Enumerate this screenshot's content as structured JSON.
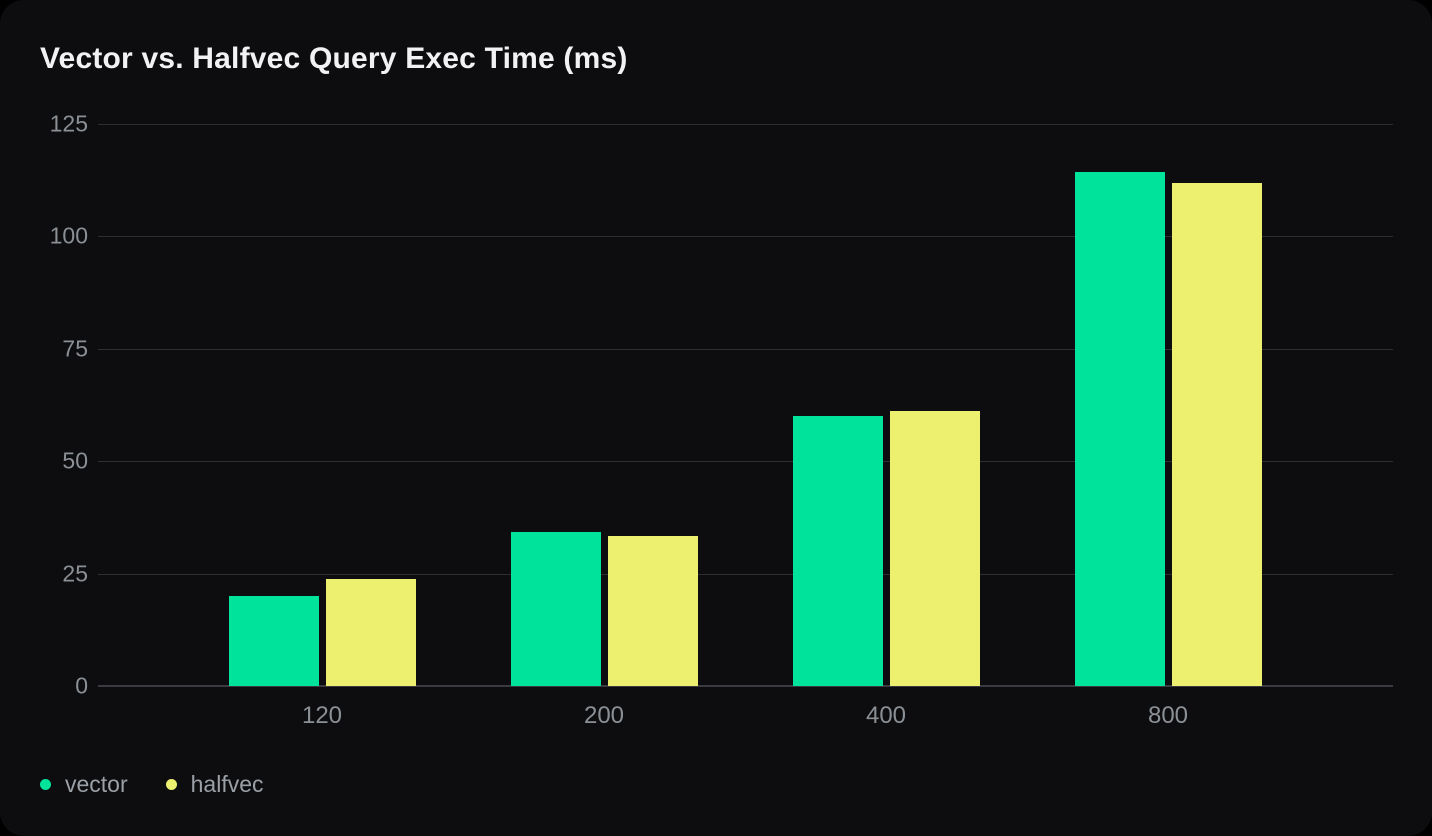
{
  "card": {
    "title": "Vector vs. Halfvec Query Exec Time (ms)"
  },
  "theme": {
    "page_bg": "#000000",
    "card_bg": "#0D0D0F",
    "title_color": "#F2F2F4",
    "tick_color": "#8B9096",
    "grid_color": "#2D2D32",
    "vector_color": "#00E39B",
    "halfvec_color": "#EDF06F"
  },
  "chart_data": {
    "type": "bar",
    "title": "Vector vs. Halfvec Query Exec Time (ms)",
    "categories": [
      "120",
      "200",
      "400",
      "800"
    ],
    "series": [
      {
        "name": "vector",
        "color": "#00E39B",
        "values": [
          20.0,
          34.3,
          60.1,
          114.4
        ]
      },
      {
        "name": "halfvec",
        "color": "#EDF06F",
        "values": [
          23.8,
          33.4,
          61.2,
          111.9
        ]
      }
    ],
    "xlabel": "",
    "ylabel": "",
    "y_ticks": [
      0,
      25,
      50,
      75,
      100,
      125
    ],
    "ylim": [
      0,
      125
    ],
    "grid": true,
    "legend_position": "bottom-left"
  }
}
